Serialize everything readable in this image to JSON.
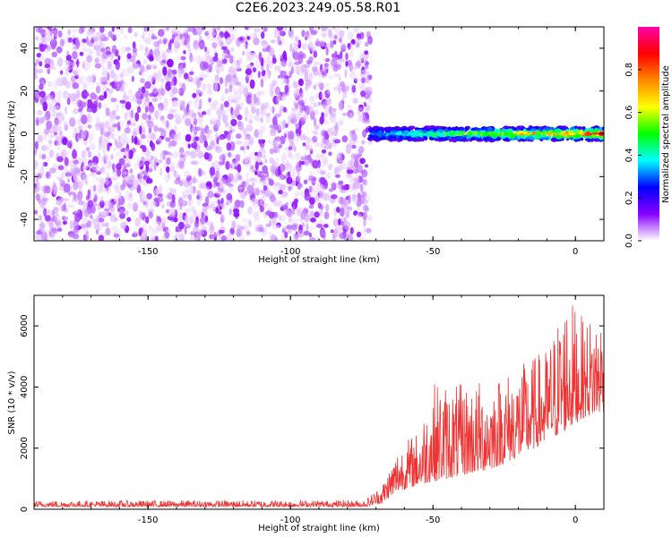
{
  "title": "C2E6.2023.249.05.58.R01",
  "chart_data": [
    {
      "type": "heatmap",
      "xlabel": "Height of straight line (km)",
      "ylabel": "Frequency (Hz)",
      "xlim": [
        -190,
        10
      ],
      "ylim": [
        -50,
        50
      ],
      "xticks": [
        -150,
        -100,
        -50,
        0
      ],
      "yticks": [
        -40,
        -20,
        0,
        20,
        40
      ],
      "colorbar": {
        "label": "Normalized spectral amplitude",
        "range": [
          0.0,
          1.0
        ],
        "ticks": [
          0.0,
          0.2,
          0.4,
          0.6,
          0.8
        ],
        "tick_labels": [
          "0.0",
          "0.2",
          "0.4",
          "0.6",
          "0.8"
        ],
        "colormap": [
          "#ffffff",
          "#8800ff",
          "#0000ff",
          "#00ffff",
          "#00ff00",
          "#ffff00",
          "#ff8800",
          "#ff0000",
          "#ff00aa"
        ]
      },
      "noise_region": {
        "x_range": [
          -190,
          -72
        ],
        "freq_range": [
          -50,
          50
        ],
        "amplitude_range": [
          0.02,
          0.12
        ]
      },
      "signal_band": {
        "x_range": [
          -72,
          10
        ],
        "freq_center": 0,
        "freq_halfwidth": 3,
        "amplitude_range": [
          0.15,
          1.0
        ]
      }
    },
    {
      "type": "line",
      "xlabel": "Height of straight line (km)",
      "ylabel": "SNR (10 * v/v)",
      "xlim": [
        -190,
        10
      ],
      "ylim": [
        0,
        7000
      ],
      "xticks": [
        -150,
        -100,
        -50,
        0
      ],
      "yticks": [
        0,
        2000,
        4000,
        6000
      ],
      "color": "#ee3333",
      "envelope": [
        {
          "x": -190,
          "base": 80,
          "amp": 200
        },
        {
          "x": -74,
          "base": 80,
          "amp": 220
        },
        {
          "x": -68,
          "base": 200,
          "amp": 600
        },
        {
          "x": -62,
          "base": 600,
          "amp": 1500
        },
        {
          "x": -55,
          "base": 800,
          "amp": 1800
        },
        {
          "x": -50,
          "base": 900,
          "amp": 3300
        },
        {
          "x": -40,
          "base": 1100,
          "amp": 3000
        },
        {
          "x": -30,
          "base": 1300,
          "amp": 3000
        },
        {
          "x": -20,
          "base": 1700,
          "amp": 3000
        },
        {
          "x": -10,
          "base": 2200,
          "amp": 3100
        },
        {
          "x": -3,
          "base": 2600,
          "amp": 4500
        },
        {
          "x": 3,
          "base": 3000,
          "amp": 3200
        },
        {
          "x": 10,
          "base": 3200,
          "amp": 3400
        }
      ]
    }
  ]
}
